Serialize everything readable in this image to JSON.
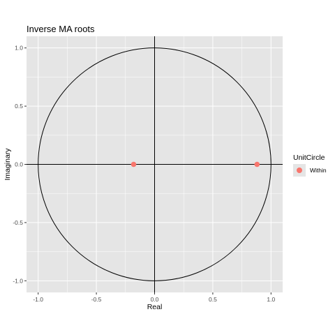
{
  "chart_data": {
    "type": "scatter",
    "title": "Inverse MA roots",
    "xlabel": "Real",
    "ylabel": "Imaginary",
    "xlim": [
      -1.1,
      1.1
    ],
    "ylim": [
      -1.1,
      1.1
    ],
    "x_ticks": [
      "-1.0",
      "-0.5",
      "0.0",
      "0.5",
      "1.0"
    ],
    "y_ticks": [
      "1.0",
      "0.5",
      "0.0",
      "-0.5",
      "-1.0"
    ],
    "grid": true,
    "unit_circle_radius": 1,
    "series": [
      {
        "name": "Within",
        "color": "#F8766D",
        "points": [
          {
            "x": -0.18,
            "y": 0.0
          },
          {
            "x": 0.88,
            "y": 0.0
          }
        ]
      }
    ],
    "legend": {
      "title": "UnitCircle",
      "placement": "right",
      "entries": [
        "Within"
      ]
    },
    "panel_background": "#e5e5e5",
    "grid_color": "#ffffff"
  }
}
